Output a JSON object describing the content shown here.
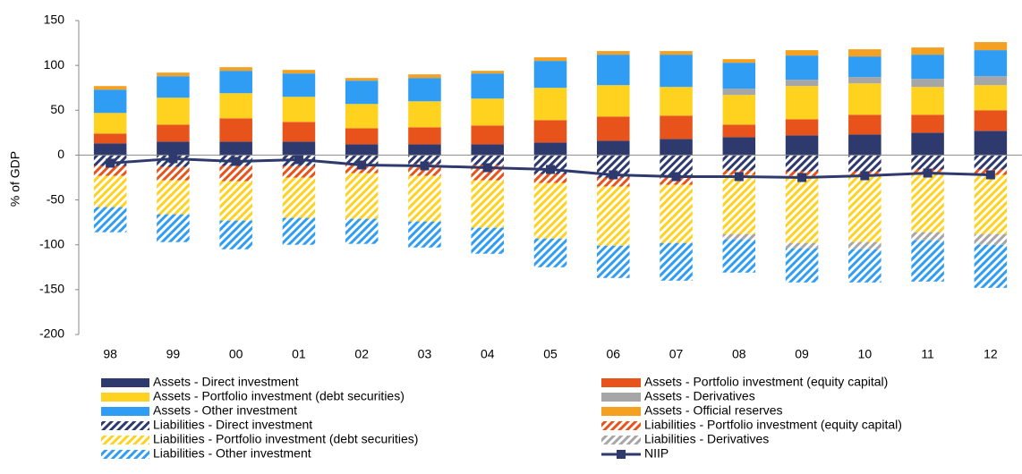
{
  "chart_data": {
    "type": "bar",
    "stacked": true,
    "y_label": "% of GDP",
    "categories": [
      "98",
      "99",
      "00",
      "01",
      "02",
      "03",
      "04",
      "05",
      "06",
      "07",
      "08",
      "09",
      "10",
      "11",
      "12"
    ],
    "ylim": [
      -200,
      150
    ],
    "yticks": [
      -200,
      -150,
      -100,
      -50,
      0,
      50,
      100,
      150
    ],
    "grid": false,
    "legend": "bottom",
    "series": [
      {
        "name": "Assets - Direct investment",
        "color": "#2e3a6e",
        "hatched": false,
        "values": [
          13,
          15,
          15,
          15,
          12,
          12,
          12,
          14,
          16,
          18,
          20,
          22,
          23,
          25,
          27
        ]
      },
      {
        "name": "Assets - Portfolio investment (equity capital)",
        "color": "#e8531c",
        "hatched": false,
        "values": [
          11,
          19,
          26,
          22,
          18,
          19,
          21,
          25,
          27,
          26,
          14,
          18,
          22,
          20,
          23
        ]
      },
      {
        "name": "Assets - Portfolio investment (debt securities)",
        "color": "#ffd21f",
        "hatched": false,
        "values": [
          23,
          30,
          28,
          28,
          27,
          29,
          30,
          36,
          35,
          32,
          33,
          37,
          35,
          31,
          28
        ]
      },
      {
        "name": "Assets - Derivatives",
        "color": "#a6a6a6",
        "hatched": false,
        "values": [
          0,
          0,
          0,
          0,
          0,
          0,
          0,
          0,
          0,
          0,
          7,
          7,
          7,
          9,
          10
        ]
      },
      {
        "name": "Assets - Other investment",
        "color": "#2f9df4",
        "hatched": false,
        "values": [
          26,
          24,
          25,
          26,
          26,
          26,
          28,
          30,
          34,
          36,
          29,
          27,
          23,
          27,
          29
        ]
      },
      {
        "name": "Assets - Official reserves",
        "color": "#f4a121",
        "hatched": false,
        "values": [
          4,
          4,
          4,
          4,
          3,
          4,
          3,
          4,
          4,
          4,
          4,
          6,
          8,
          8,
          9
        ]
      },
      {
        "name": "Liabilities - Direct investment",
        "color": "#2e3a6e",
        "hatched": true,
        "values": [
          -12,
          -13,
          -12,
          -12,
          -10,
          -10,
          -11,
          -21,
          -25,
          -25,
          -17,
          -18,
          -18,
          -16,
          -16
        ]
      },
      {
        "name": "Liabilities - Portfolio investment (equity capital)",
        "color": "#e8531c",
        "hatched": true,
        "values": [
          -11,
          -15,
          -17,
          -13,
          -10,
          -13,
          -17,
          -10,
          -10,
          -8,
          -5,
          -5,
          -6,
          -6,
          -6
        ]
      },
      {
        "name": "Liabilities - Portfolio investment (debt securities)",
        "color": "#ffd21f",
        "hatched": true,
        "values": [
          -35,
          -38,
          -44,
          -45,
          -51,
          -51,
          -53,
          -62,
          -66,
          -65,
          -66,
          -75,
          -73,
          -64,
          -66
        ]
      },
      {
        "name": "Liabilities - Derivatives",
        "color": "#a6a6a6",
        "hatched": true,
        "values": [
          0,
          0,
          0,
          0,
          0,
          0,
          0,
          0,
          0,
          0,
          -6,
          -6,
          -8,
          -9,
          -12
        ]
      },
      {
        "name": "Liabilities - Other investment",
        "color": "#2f9df4",
        "hatched": true,
        "values": [
          -28,
          -31,
          -32,
          -30,
          -28,
          -29,
          -29,
          -32,
          -36,
          -42,
          -37,
          -38,
          -37,
          -46,
          -48
        ]
      },
      {
        "name": "NIIP",
        "color": "#2e3a6e",
        "type": "line",
        "values": [
          -9,
          -4,
          -7,
          -5,
          -11,
          -12,
          -14,
          -16,
          -22,
          -24,
          -24,
          -25,
          -23,
          -20,
          -22
        ]
      }
    ]
  }
}
